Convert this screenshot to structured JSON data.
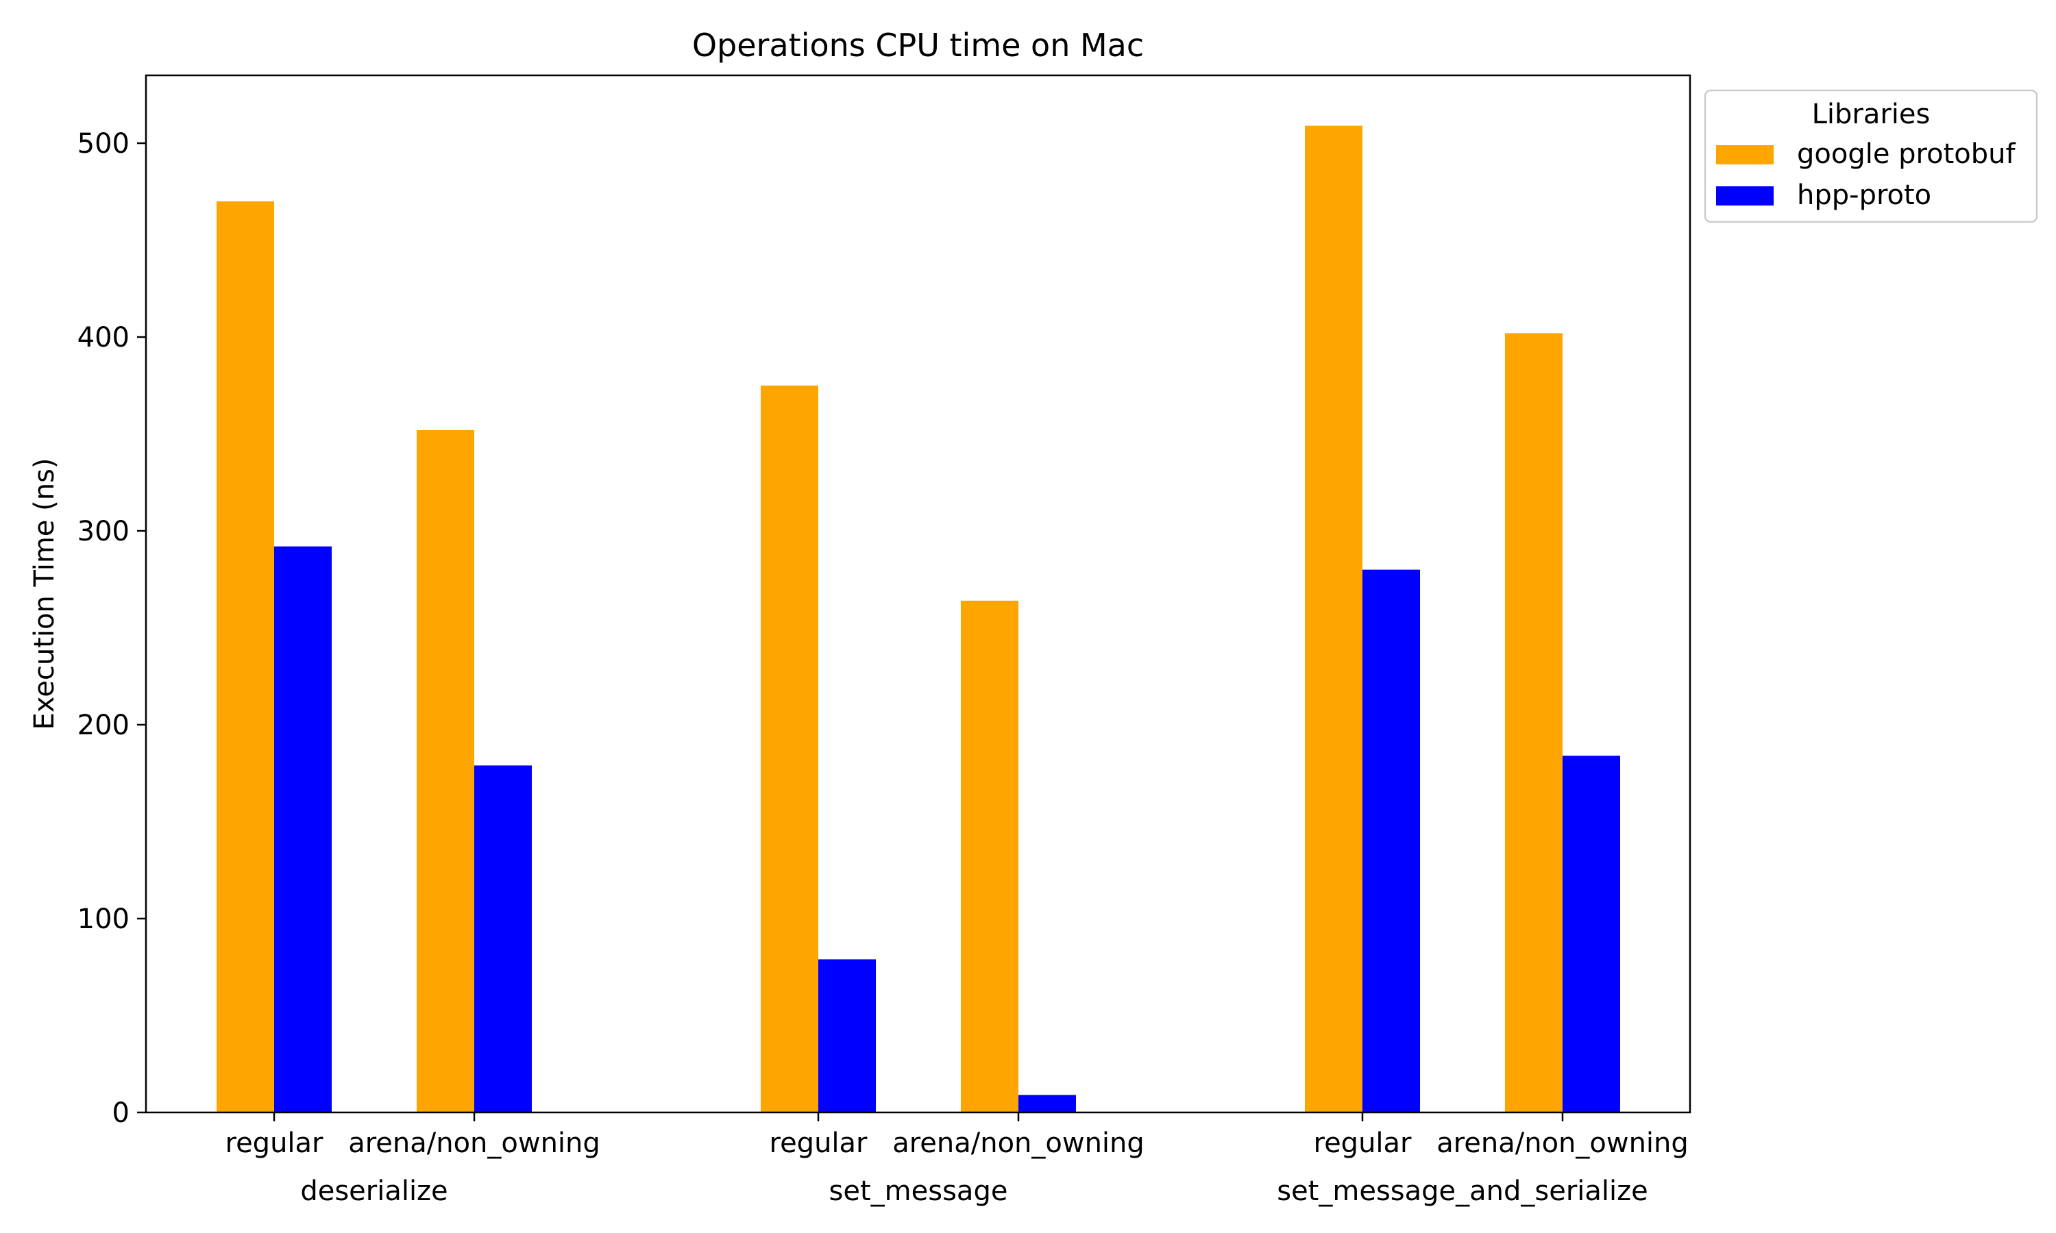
{
  "chart_data": {
    "type": "bar",
    "title": "Operations CPU time on Mac",
    "xlabel": "",
    "ylabel": "Execution Time (ns)",
    "ylim": [
      0,
      535
    ],
    "yticks": [
      0,
      100,
      200,
      300,
      400,
      500
    ],
    "grid": false,
    "groups": [
      {
        "name": "deserialize",
        "categories": [
          "regular",
          "arena/non_owning"
        ]
      },
      {
        "name": "set_message",
        "categories": [
          "regular",
          "arena/non_owning"
        ]
      },
      {
        "name": "set_message_and_serialize",
        "categories": [
          "regular",
          "arena/non_owning"
        ]
      }
    ],
    "categories": [
      "deserialize / regular",
      "deserialize / arena/non_owning",
      "set_message / regular",
      "set_message / arena/non_owning",
      "set_message_and_serialize / regular",
      "set_message_and_serialize / arena/non_owning"
    ],
    "series": [
      {
        "name": "google protobuf",
        "color": "#FFA500",
        "values": [
          470,
          352,
          375,
          264,
          509,
          402
        ]
      },
      {
        "name": "hpp-proto",
        "color": "#0000FF",
        "values": [
          292,
          179,
          79,
          9,
          280,
          184
        ]
      }
    ],
    "legend": {
      "title": "Libraries",
      "placement": "outside-top-right"
    }
  }
}
